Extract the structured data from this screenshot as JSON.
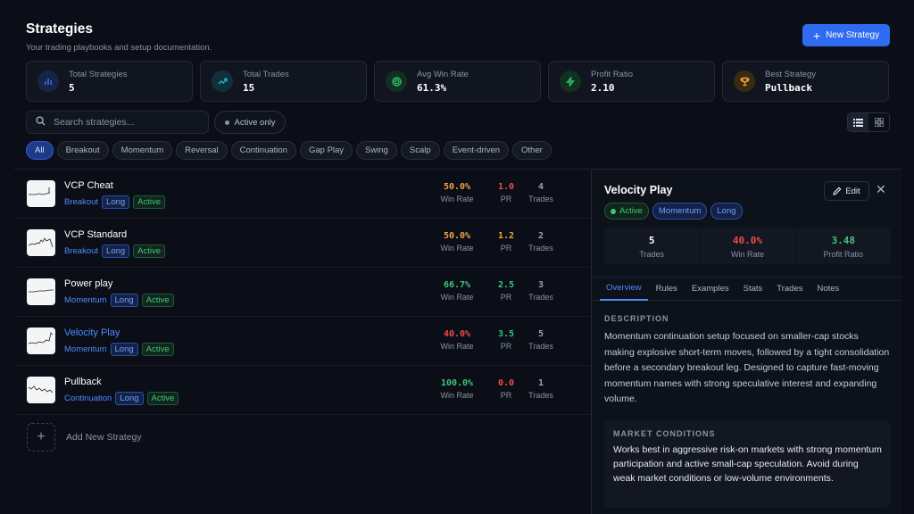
{
  "header": {
    "title": "Strategies",
    "subtitle": "Your trading playbooks and setup documentation."
  },
  "new_button": "New Strategy",
  "stats": [
    {
      "label": "Total Strategies",
      "value": "5",
      "icon": "bar-chart-icon",
      "color": "#3b6fe0",
      "bg": "#162445"
    },
    {
      "label": "Total Trades",
      "value": "15",
      "icon": "trend-up-icon",
      "color": "#2bb3c9",
      "bg": "#10303a"
    },
    {
      "label": "Avg Win Rate",
      "value": "61.3%",
      "icon": "target-icon",
      "color": "#2fbf6b",
      "bg": "#11301f"
    },
    {
      "label": "Profit Ratio",
      "value": "2.10",
      "icon": "bolt-icon",
      "color": "#2fbf6b",
      "bg": "#11301f"
    },
    {
      "label": "Best Strategy",
      "value": "Pullback",
      "icon": "trophy-icon",
      "color": "#f3a33d",
      "bg": "#3a2a10"
    }
  ],
  "search": {
    "placeholder": "Search strategies..."
  },
  "active_only": "Active only",
  "chips": [
    "All",
    "Breakout",
    "Momentum",
    "Reversal",
    "Continuation",
    "Gap Play",
    "Swing",
    "Scalp",
    "Event-driven",
    "Other"
  ],
  "strategies": [
    {
      "name": "VCP Cheat",
      "category": "Breakout",
      "side": "Long",
      "status": "Active",
      "win_rate": "50.0%",
      "pr": "1.0",
      "trades": "4",
      "win_color": "orange",
      "pr_color": "red"
    },
    {
      "name": "VCP Standard",
      "category": "Breakout",
      "side": "Long",
      "status": "Active",
      "win_rate": "50.0%",
      "pr": "1.2",
      "trades": "2",
      "win_color": "orange",
      "pr_color": "orange"
    },
    {
      "name": "Power play",
      "category": "Momentum",
      "side": "Long",
      "status": "Active",
      "win_rate": "66.7%",
      "pr": "2.5",
      "trades": "3",
      "win_color": "green",
      "pr_color": "green"
    },
    {
      "name": "Velocity Play",
      "category": "Momentum",
      "side": "Long",
      "status": "Active",
      "win_rate": "40.0%",
      "pr": "3.5",
      "trades": "5",
      "win_color": "red",
      "pr_color": "green"
    },
    {
      "name": "Pullback",
      "category": "Continuation",
      "side": "Long",
      "status": "Active",
      "win_rate": "100.0%",
      "pr": "0.0",
      "trades": "1",
      "win_color": "green",
      "pr_color": "red"
    }
  ],
  "labels": {
    "win_rate": "Win Rate",
    "pr": "PR",
    "trades": "Trades"
  },
  "add_new": "Add New Strategy",
  "detail": {
    "title": "Velocity Play",
    "tags": [
      "Active",
      "Momentum",
      "Long"
    ],
    "edit": "Edit",
    "stats": [
      {
        "value": "5",
        "label": "Trades"
      },
      {
        "value": "40.0%",
        "label": "Win Rate"
      },
      {
        "value": "3.48",
        "label": "Profit Ratio"
      }
    ],
    "tabs": [
      "Overview",
      "Rules",
      "Examples",
      "Stats",
      "Trades",
      "Notes"
    ],
    "description_heading": "DESCRIPTION",
    "description": "Momentum continuation setup focused on smaller-cap stocks making explosive short-term moves, followed by a tight consolidation before a secondary breakout leg. Designed to capture fast-moving momentum names with strong speculative interest and expanding volume.",
    "market_heading": "MARKET CONDITIONS",
    "market_text": "Works best in aggressive risk-on markets with strong momentum participation and active small-cap speculation. Avoid during weak market conditions or low-volume environments."
  }
}
